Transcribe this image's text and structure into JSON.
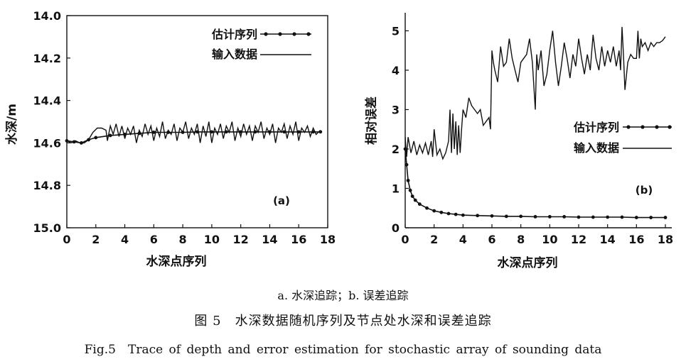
{
  "chart_data": [
    {
      "type": "line",
      "panel_label": "(a)",
      "xlabel": "水深点序列",
      "ylabel": "水深/m",
      "xlim": [
        0,
        18
      ],
      "ylim": [
        14.0,
        15.0
      ],
      "y_inverted": true,
      "x_ticks": [
        0,
        2,
        4,
        6,
        8,
        10,
        12,
        14,
        16,
        18
      ],
      "y_ticks": [
        "14.0",
        "14.2",
        "14.4",
        "14.6",
        "14.8",
        "15.0"
      ],
      "legend_position": "top-right",
      "series": [
        {
          "name": "估计序列",
          "marker": "dot",
          "x": [
            0,
            0.5,
            1.0,
            1.5,
            2.0,
            3,
            4,
            5,
            6,
            7,
            8,
            9,
            10,
            11,
            12,
            13,
            14,
            15,
            16,
            17,
            17.5
          ],
          "y": [
            14.59,
            14.595,
            14.6,
            14.585,
            14.575,
            14.565,
            14.56,
            14.555,
            14.55,
            14.55,
            14.55,
            14.548,
            14.548,
            14.548,
            14.548,
            14.548,
            14.548,
            14.548,
            14.548,
            14.548,
            14.548
          ]
        },
        {
          "name": "输入数据",
          "marker": "none",
          "x": [
            0,
            0.3,
            0.6,
            0.9,
            1.2,
            1.5,
            1.8,
            2.1,
            2.4,
            2.7,
            2.8,
            3.0,
            3.2,
            3.4,
            3.6,
            3.8,
            4.0,
            4.2,
            4.4,
            4.6,
            4.8,
            5.0,
            5.2,
            5.4,
            5.6,
            5.8,
            6.0,
            6.2,
            6.4,
            6.6,
            6.8,
            7.0,
            7.2,
            7.4,
            7.6,
            7.8,
            8.0,
            8.2,
            8.4,
            8.6,
            8.8,
            9.0,
            9.2,
            9.4,
            9.6,
            9.8,
            10.0,
            10.2,
            10.4,
            10.6,
            10.8,
            11.0,
            11.2,
            11.4,
            11.6,
            11.8,
            12.0,
            12.2,
            12.4,
            12.6,
            12.8,
            13.0,
            13.2,
            13.4,
            13.6,
            13.8,
            14.0,
            14.2,
            14.4,
            14.6,
            14.8,
            15.0,
            15.2,
            15.4,
            15.6,
            15.8,
            16.0,
            16.2,
            16.4,
            16.6,
            16.8,
            17.0,
            17.2,
            17.5
          ],
          "y": [
            14.59,
            14.6,
            14.59,
            14.6,
            14.6,
            14.585,
            14.55,
            14.53,
            14.53,
            14.54,
            14.59,
            14.52,
            14.56,
            14.51,
            14.57,
            14.52,
            14.58,
            14.53,
            14.56,
            14.52,
            14.6,
            14.54,
            14.57,
            14.51,
            14.56,
            14.52,
            14.59,
            14.53,
            14.57,
            14.5,
            14.58,
            14.54,
            14.56,
            14.51,
            14.59,
            14.53,
            14.55,
            14.5,
            14.58,
            14.53,
            14.56,
            14.51,
            14.6,
            14.52,
            14.57,
            14.5,
            14.6,
            14.53,
            14.56,
            14.51,
            14.58,
            14.52,
            14.55,
            14.5,
            14.59,
            14.53,
            14.57,
            14.51,
            14.56,
            14.52,
            14.59,
            14.52,
            14.55,
            14.5,
            14.58,
            14.53,
            14.56,
            14.51,
            14.6,
            14.53,
            14.55,
            14.51,
            14.58,
            14.52,
            14.56,
            14.5,
            14.59,
            14.53,
            14.55,
            14.52,
            14.57,
            14.53,
            14.56,
            14.54
          ]
        }
      ]
    },
    {
      "type": "line",
      "panel_label": "(b)",
      "xlabel": "水深点序列",
      "ylabel": "相对误差",
      "xlim": [
        0,
        18
      ],
      "ylim": [
        0,
        5.5
      ],
      "x_ticks": [
        0,
        2,
        4,
        6,
        8,
        10,
        12,
        14,
        16,
        18
      ],
      "y_ticks": [
        0,
        1,
        2,
        3,
        4,
        5
      ],
      "legend_position": "center-right",
      "series": [
        {
          "name": "估计序列",
          "marker": "dot",
          "x": [
            0,
            0.1,
            0.2,
            0.35,
            0.5,
            0.7,
            1.0,
            1.5,
            2.0,
            2.5,
            3.0,
            3.5,
            4.0,
            5,
            6,
            7,
            8,
            9,
            10,
            11,
            12,
            13,
            14,
            15,
            16,
            17,
            18
          ],
          "y": [
            2.0,
            1.6,
            1.2,
            0.95,
            0.8,
            0.7,
            0.6,
            0.5,
            0.43,
            0.39,
            0.36,
            0.34,
            0.32,
            0.31,
            0.3,
            0.29,
            0.29,
            0.28,
            0.28,
            0.28,
            0.27,
            0.27,
            0.27,
            0.27,
            0.26,
            0.26,
            0.26
          ]
        },
        {
          "name": "输入数据",
          "marker": "none",
          "x": [
            0,
            0.1,
            0.2,
            0.4,
            0.6,
            0.8,
            1.0,
            1.2,
            1.4,
            1.6,
            1.8,
            1.9,
            2.0,
            2.2,
            2.4,
            2.6,
            2.8,
            3.0,
            3.1,
            3.2,
            3.3,
            3.4,
            3.5,
            3.6,
            3.7,
            3.8,
            3.9,
            4.0,
            4.2,
            4.4,
            4.6,
            4.8,
            5.0,
            5.2,
            5.4,
            5.6,
            5.8,
            5.9,
            6.0,
            6.1,
            6.2,
            6.4,
            6.6,
            6.8,
            7.0,
            7.2,
            7.4,
            7.6,
            7.8,
            8.0,
            8.2,
            8.4,
            8.6,
            8.8,
            9.0,
            9.1,
            9.2,
            9.4,
            9.6,
            9.8,
            10.0,
            10.2,
            10.4,
            10.6,
            10.8,
            11.0,
            11.2,
            11.4,
            11.6,
            11.8,
            12.0,
            12.2,
            12.4,
            12.6,
            12.8,
            13.0,
            13.2,
            13.4,
            13.6,
            13.8,
            14.0,
            14.2,
            14.4,
            14.6,
            14.8,
            14.9,
            15.0,
            15.1,
            15.2,
            15.4,
            15.6,
            15.8,
            16.0,
            16.1,
            16.2,
            16.3,
            16.4,
            16.6,
            16.8,
            17.0,
            17.2,
            17.4,
            17.6,
            17.8,
            18.0
          ],
          "y": [
            2.3,
            1.8,
            2.3,
            1.9,
            2.2,
            1.85,
            2.1,
            1.9,
            2.15,
            1.85,
            2.2,
            1.8,
            2.5,
            1.85,
            2.0,
            1.75,
            1.9,
            2.2,
            3.0,
            1.9,
            2.9,
            2.0,
            2.7,
            1.85,
            2.6,
            1.9,
            2.5,
            3.0,
            2.8,
            3.3,
            3.1,
            3.0,
            2.9,
            3.0,
            2.6,
            2.7,
            2.8,
            2.5,
            4.5,
            4.2,
            4.0,
            3.7,
            4.6,
            4.1,
            4.2,
            4.8,
            4.3,
            4.0,
            3.7,
            4.2,
            4.3,
            4.4,
            4.8,
            4.2,
            3.0,
            4.4,
            4.0,
            4.5,
            3.6,
            3.9,
            4.5,
            5.0,
            4.2,
            3.6,
            4.1,
            4.7,
            4.3,
            3.8,
            4.4,
            4.1,
            4.8,
            4.3,
            3.9,
            4.4,
            4.0,
            4.9,
            4.3,
            4.0,
            4.6,
            4.1,
            4.5,
            4.2,
            4.6,
            4.1,
            4.5,
            4.0,
            5.1,
            4.4,
            3.5,
            4.2,
            4.4,
            4.3,
            4.3,
            5.0,
            4.3,
            4.8,
            4.6,
            4.7,
            4.5,
            4.7,
            4.6,
            4.7,
            4.7,
            4.75,
            4.85
          ]
        }
      ]
    }
  ],
  "captions": {
    "sub": "a. 水深追踪；b. 误差追踪",
    "cn": "图 5　水深数据随机序列及节点处水深和误差追踪",
    "en": "Fig.5　Trace of depth and error estimation for stochastic array of sounding data"
  }
}
